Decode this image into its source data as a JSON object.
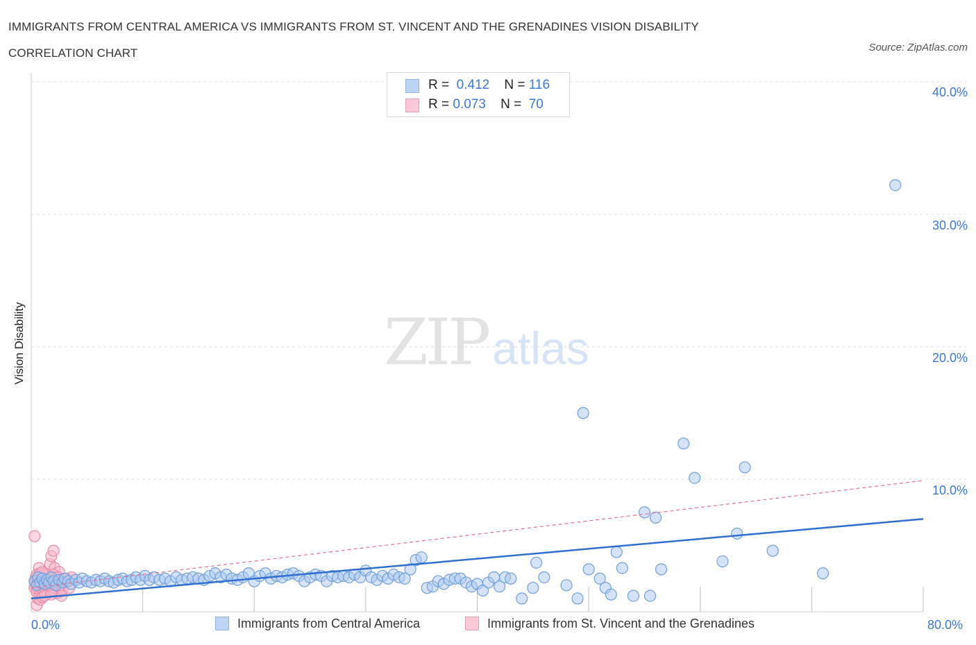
{
  "chart_data": {
    "type": "scatter",
    "title": "IMMIGRANTS FROM CENTRAL AMERICA VS IMMIGRANTS FROM ST. VINCENT AND THE GRENADINES VISION DISABILITY CORRELATION CHART",
    "source": "Source: ZipAtlas.com",
    "xlabel": "",
    "ylabel": "Vision Disability",
    "xlim": [
      0,
      80
    ],
    "ylim": [
      0,
      40
    ],
    "x_tick_labels": [
      "0.0%",
      "80.0%"
    ],
    "y_tick_labels": [
      "10.0%",
      "20.0%",
      "30.0%",
      "40.0%"
    ],
    "y_tick_values": [
      10,
      20,
      30,
      40
    ],
    "grid": true,
    "watermark": {
      "zip": "ZIP",
      "atlas": "atlas"
    },
    "legend": {
      "rows": [
        {
          "r_label": "R =",
          "r_value": "0.412",
          "n_label": "N =",
          "n_value": "116"
        },
        {
          "r_label": "R =",
          "r_value": "0.073",
          "n_label": "N =",
          "n_value": "70"
        }
      ]
    },
    "series": [
      {
        "name": "Immigrants from Central America",
        "color": "#a9c8f0",
        "edge_color": "#6f9fdc",
        "trend": {
          "x": [
            0,
            80
          ],
          "y": [
            1.0,
            7.0
          ],
          "color": "#2f6fd0",
          "style": "solid"
        },
        "points": [
          [
            0.3,
            2.3
          ],
          [
            0.5,
            2.0
          ],
          [
            0.6,
            2.6
          ],
          [
            0.8,
            2.2
          ],
          [
            1.0,
            2.5
          ],
          [
            1.2,
            2.1
          ],
          [
            1.4,
            2.4
          ],
          [
            1.6,
            2.2
          ],
          [
            1.8,
            2.6
          ],
          [
            2.0,
            2.3
          ],
          [
            2.2,
            2.0
          ],
          [
            2.5,
            2.4
          ],
          [
            2.8,
            2.2
          ],
          [
            3.0,
            2.5
          ],
          [
            3.3,
            2.3
          ],
          [
            3.6,
            2.1
          ],
          [
            4.0,
            2.4
          ],
          [
            4.3,
            2.2
          ],
          [
            4.6,
            2.5
          ],
          [
            5.0,
            2.3
          ],
          [
            5.4,
            2.2
          ],
          [
            5.8,
            2.4
          ],
          [
            6.2,
            2.3
          ],
          [
            6.6,
            2.5
          ],
          [
            7.0,
            2.3
          ],
          [
            7.4,
            2.2
          ],
          [
            7.8,
            2.4
          ],
          [
            8.2,
            2.5
          ],
          [
            8.6,
            2.3
          ],
          [
            9.0,
            2.4
          ],
          [
            9.4,
            2.6
          ],
          [
            9.8,
            2.4
          ],
          [
            10.2,
            2.7
          ],
          [
            10.6,
            2.4
          ],
          [
            11.0,
            2.6
          ],
          [
            11.5,
            2.4
          ],
          [
            12.0,
            2.5
          ],
          [
            12.5,
            2.3
          ],
          [
            13.0,
            2.6
          ],
          [
            13.5,
            2.4
          ],
          [
            14.0,
            2.5
          ],
          [
            14.5,
            2.6
          ],
          [
            15.0,
            2.5
          ],
          [
            15.5,
            2.4
          ],
          [
            16.0,
            2.7
          ],
          [
            16.5,
            2.9
          ],
          [
            17.0,
            2.6
          ],
          [
            17.5,
            2.8
          ],
          [
            18.0,
            2.5
          ],
          [
            18.5,
            2.4
          ],
          [
            19.0,
            2.6
          ],
          [
            19.5,
            2.9
          ],
          [
            20.0,
            2.3
          ],
          [
            20.5,
            2.7
          ],
          [
            21.0,
            2.9
          ],
          [
            21.5,
            2.5
          ],
          [
            22.0,
            2.7
          ],
          [
            22.5,
            2.6
          ],
          [
            23.0,
            2.8
          ],
          [
            23.5,
            2.9
          ],
          [
            24.0,
            2.7
          ],
          [
            24.5,
            2.3
          ],
          [
            25.0,
            2.6
          ],
          [
            25.5,
            2.8
          ],
          [
            26.0,
            2.7
          ],
          [
            26.5,
            2.3
          ],
          [
            27.0,
            2.7
          ],
          [
            27.5,
            2.6
          ],
          [
            28.0,
            2.7
          ],
          [
            28.5,
            2.6
          ],
          [
            29.0,
            2.8
          ],
          [
            29.5,
            2.6
          ],
          [
            30.0,
            3.1
          ],
          [
            30.5,
            2.6
          ],
          [
            31.0,
            2.4
          ],
          [
            31.5,
            2.7
          ],
          [
            32.0,
            2.5
          ],
          [
            32.5,
            2.8
          ],
          [
            33.0,
            2.6
          ],
          [
            33.5,
            2.5
          ],
          [
            34.0,
            3.2
          ],
          [
            34.5,
            3.9
          ],
          [
            35.0,
            4.1
          ],
          [
            35.5,
            1.8
          ],
          [
            36.0,
            1.9
          ],
          [
            36.5,
            2.3
          ],
          [
            37.0,
            2.1
          ],
          [
            37.5,
            2.4
          ],
          [
            38.0,
            2.5
          ],
          [
            38.5,
            2.5
          ],
          [
            39.0,
            2.2
          ],
          [
            39.5,
            1.9
          ],
          [
            40.0,
            2.1
          ],
          [
            40.5,
            1.6
          ],
          [
            41.0,
            2.2
          ],
          [
            41.5,
            2.6
          ],
          [
            42.0,
            1.9
          ],
          [
            42.5,
            2.6
          ],
          [
            43.0,
            2.5
          ],
          [
            44.0,
            1.0
          ],
          [
            45.0,
            1.8
          ],
          [
            45.3,
            3.7
          ],
          [
            46.0,
            2.6
          ],
          [
            48.0,
            2.0
          ],
          [
            49.0,
            1.0
          ],
          [
            49.5,
            15.0
          ],
          [
            50.0,
            3.2
          ],
          [
            51.0,
            2.5
          ],
          [
            51.5,
            1.8
          ],
          [
            52.0,
            1.3
          ],
          [
            52.5,
            4.5
          ],
          [
            53.0,
            3.3
          ],
          [
            54.0,
            1.2
          ],
          [
            55.0,
            7.5
          ],
          [
            55.5,
            1.2
          ],
          [
            56.0,
            7.1
          ],
          [
            56.5,
            3.2
          ],
          [
            58.5,
            12.7
          ],
          [
            59.5,
            10.1
          ],
          [
            62.0,
            3.8
          ],
          [
            63.3,
            5.9
          ],
          [
            64.0,
            10.9
          ],
          [
            66.5,
            4.6
          ],
          [
            71.0,
            2.9
          ],
          [
            77.5,
            32.2
          ]
        ]
      },
      {
        "name": "Immigrants from St. Vincent and the Grenadines",
        "color": "#f6b8cb",
        "edge_color": "#e98aa8",
        "trend": {
          "x": [
            0,
            80
          ],
          "y": [
            1.8,
            9.9
          ],
          "color": "#e46f93",
          "style": "dashed"
        },
        "points": [
          [
            0.3,
            5.7
          ],
          [
            0.4,
            2.6
          ],
          [
            0.5,
            2.2
          ],
          [
            0.6,
            1.7
          ],
          [
            0.7,
            3.3
          ],
          [
            0.8,
            2.0
          ],
          [
            0.9,
            1.4
          ],
          [
            0.4,
            1.9
          ],
          [
            0.5,
            2.8
          ],
          [
            0.6,
            2.4
          ],
          [
            0.7,
            1.6
          ],
          [
            0.8,
            2.9
          ],
          [
            0.9,
            2.1
          ],
          [
            1.0,
            1.8
          ],
          [
            1.1,
            2.5
          ],
          [
            1.2,
            1.5
          ],
          [
            1.3,
            2.2
          ],
          [
            1.4,
            1.9
          ],
          [
            1.5,
            2.7
          ],
          [
            1.6,
            1.6
          ],
          [
            1.7,
            3.6
          ],
          [
            1.8,
            4.2
          ],
          [
            1.9,
            2.3
          ],
          [
            2.0,
            4.6
          ],
          [
            2.1,
            3.3
          ],
          [
            2.2,
            2.0
          ],
          [
            2.3,
            1.4
          ],
          [
            2.4,
            1.7
          ],
          [
            2.5,
            3.0
          ],
          [
            2.6,
            1.5
          ],
          [
            0.3,
            1.8
          ],
          [
            0.4,
            2.3
          ],
          [
            0.5,
            1.5
          ],
          [
            0.6,
            2.0
          ],
          [
            0.7,
            2.6
          ],
          [
            0.8,
            1.3
          ],
          [
            0.9,
            2.4
          ],
          [
            1.0,
            2.1
          ],
          [
            1.1,
            1.6
          ],
          [
            1.2,
            2.9
          ],
          [
            1.3,
            1.7
          ],
          [
            1.4,
            2.3
          ],
          [
            1.5,
            1.4
          ],
          [
            1.6,
            2.5
          ],
          [
            1.7,
            1.9
          ],
          [
            1.8,
            2.2
          ],
          [
            1.9,
            1.6
          ],
          [
            2.0,
            2.8
          ],
          [
            2.1,
            1.8
          ],
          [
            2.2,
            2.4
          ],
          [
            2.3,
            2.1
          ],
          [
            2.4,
            2.6
          ],
          [
            2.5,
            1.9
          ],
          [
            2.6,
            2.3
          ],
          [
            2.8,
            1.7
          ],
          [
            3.0,
            2.2
          ],
          [
            3.2,
            2.5
          ],
          [
            3.4,
            1.8
          ],
          [
            3.6,
            2.6
          ],
          [
            2.7,
            1.2
          ],
          [
            0.5,
            0.5
          ],
          [
            0.6,
            1.0
          ],
          [
            0.8,
            0.9
          ],
          [
            1.0,
            1.1
          ],
          [
            1.2,
            1.2
          ],
          [
            1.4,
            2.8
          ],
          [
            1.6,
            2.0
          ],
          [
            1.8,
            1.3
          ],
          [
            1.0,
            3.0
          ],
          [
            0.7,
            2.1
          ]
        ]
      }
    ]
  }
}
